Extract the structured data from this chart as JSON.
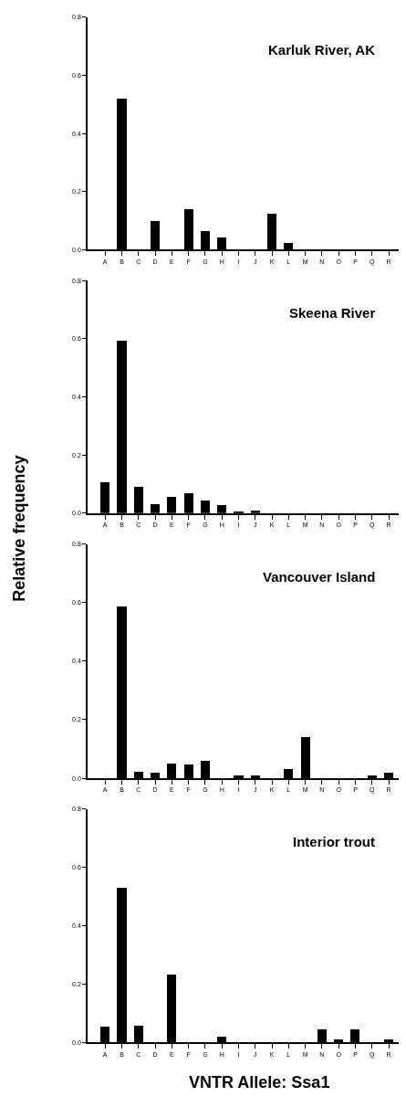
{
  "chart_data": [
    {
      "type": "bar",
      "title": "Karluk River, AK",
      "categories": [
        "A",
        "B",
        "C",
        "D",
        "E",
        "F",
        "G",
        "H",
        "I",
        "J",
        "K",
        "L",
        "M",
        "N",
        "O",
        "P",
        "Q",
        "R"
      ],
      "values": [
        0,
        0.52,
        0,
        0.1,
        0,
        0.14,
        0.063,
        0.043,
        0,
        0,
        0.124,
        0.023,
        0,
        0,
        0,
        0,
        0,
        0
      ],
      "color": "#000000",
      "ylim": [
        0,
        0.8
      ],
      "yticks": [
        {
          "value": 0,
          "label": "0.0"
        },
        {
          "value": 0.2,
          "label": "0.2"
        },
        {
          "value": 0.4,
          "label": "0.4"
        },
        {
          "value": 0.6,
          "label": "0.6"
        },
        {
          "value": 0.8,
          "label": "0.8"
        }
      ]
    },
    {
      "type": "bar",
      "title": "Skeena River",
      "ylabel": "Relative frequency",
      "categories": [
        "A",
        "B",
        "C",
        "D",
        "E",
        "F",
        "G",
        "H",
        "I",
        "J",
        "K",
        "L",
        "M",
        "N",
        "O",
        "P",
        "Q",
        "R"
      ],
      "values": [
        0.105,
        0.594,
        0.089,
        0.031,
        0.055,
        0.068,
        0.041,
        0.027,
        0.004,
        0.007,
        0,
        0,
        0,
        0,
        0,
        0,
        0,
        0
      ],
      "color": "#000000",
      "ylim": [
        0,
        0.8
      ],
      "yticks": [
        {
          "value": 0,
          "label": "0.0"
        },
        {
          "value": 0.2,
          "label": "0.2"
        },
        {
          "value": 0.4,
          "label": "0.4"
        },
        {
          "value": 0.6,
          "label": "0.6"
        },
        {
          "value": 0.8,
          "label": "0.8"
        }
      ]
    },
    {
      "type": "bar",
      "title": "Vancouver Island",
      "categories": [
        "A",
        "B",
        "C",
        "D",
        "E",
        "F",
        "G",
        "H",
        "I",
        "J",
        "K",
        "L",
        "M",
        "N",
        "O",
        "P",
        "Q",
        "R"
      ],
      "values": [
        0,
        0.589,
        0.022,
        0.02,
        0.051,
        0.049,
        0.06,
        0,
        0.01,
        0.011,
        0,
        0.033,
        0.142,
        0,
        0,
        0,
        0.011,
        0.021
      ],
      "color": "#000000",
      "ylim": [
        0,
        0.8
      ],
      "yticks": [
        {
          "value": 0,
          "label": "0.0"
        },
        {
          "value": 0.2,
          "label": "0.2"
        },
        {
          "value": 0.4,
          "label": "0.4"
        },
        {
          "value": 0.6,
          "label": "0.6"
        },
        {
          "value": 0.8,
          "label": "0.8"
        }
      ]
    },
    {
      "type": "bar",
      "title": "Interior trout",
      "xlabel": "VNTR Allele: Ssa1",
      "categories": [
        "A",
        "B",
        "C",
        "D",
        "E",
        "F",
        "G",
        "H",
        "I",
        "J",
        "K",
        "L",
        "M",
        "N",
        "O",
        "P",
        "Q",
        "R"
      ],
      "values": [
        0.055,
        0.53,
        0.058,
        0,
        0.233,
        0,
        0,
        0.021,
        0,
        0,
        0,
        0,
        0,
        0.044,
        0.01,
        0.047,
        0,
        0.011
      ],
      "color": "#000000",
      "ylim": [
        0,
        0.8
      ],
      "yticks": [
        {
          "value": 0,
          "label": "0.0"
        },
        {
          "value": 0.2,
          "label": "0.2"
        },
        {
          "value": 0.4,
          "label": "0.4"
        },
        {
          "value": 0.6,
          "label": "0.6"
        },
        {
          "value": 0.8,
          "label": "0.8"
        }
      ]
    }
  ]
}
